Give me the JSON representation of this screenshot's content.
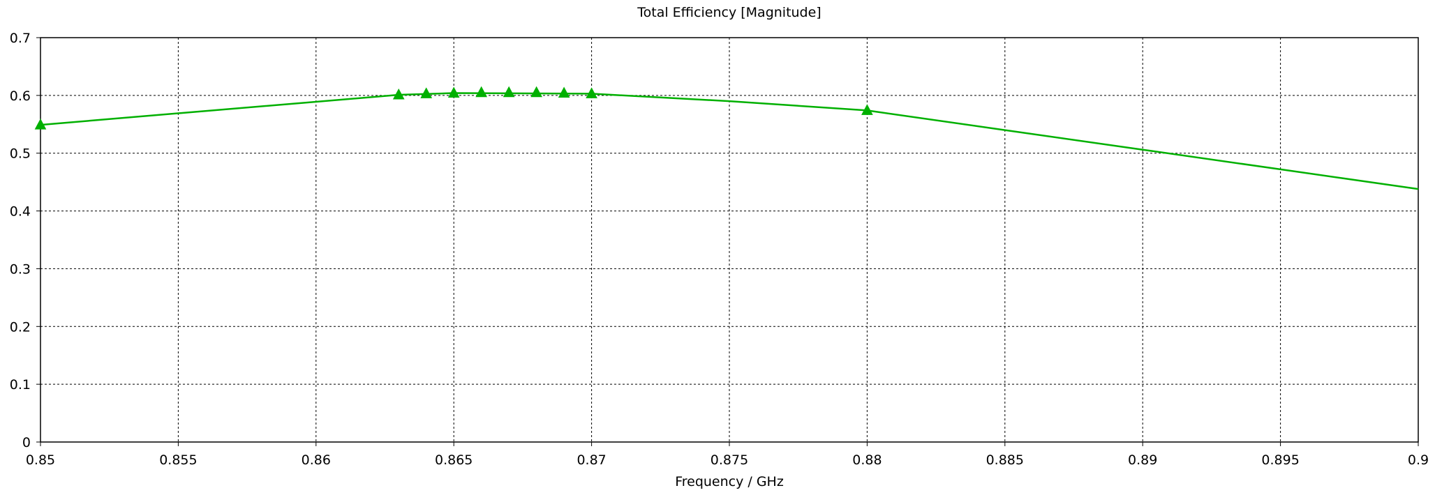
{
  "chart_data": {
    "type": "line",
    "title": "Total Efficiency [Magnitude]",
    "xlabel": "Frequency / GHz",
    "ylabel": "",
    "xlim": [
      0.85,
      0.9
    ],
    "ylim": [
      0,
      0.7
    ],
    "x_ticks": [
      0.85,
      0.855,
      0.86,
      0.865,
      0.87,
      0.875,
      0.88,
      0.885,
      0.89,
      0.895,
      0.9
    ],
    "x_tick_labels": [
      "0.85",
      "0.855",
      "0.86",
      "0.865",
      "0.87",
      "0.875",
      "0.88",
      "0.885",
      "0.89",
      "0.895",
      "0.9"
    ],
    "y_ticks": [
      0,
      0.1,
      0.2,
      0.3,
      0.4,
      0.5,
      0.6,
      0.7
    ],
    "y_tick_labels": [
      "0",
      "0.1",
      "0.2",
      "0.3",
      "0.4",
      "0.5",
      "0.6",
      "0.7"
    ],
    "grid": true,
    "grid_style": "dashed",
    "series": [
      {
        "color": "#00b000",
        "marker": "triangle",
        "x": [
          0.85,
          0.855,
          0.86,
          0.863,
          0.865,
          0.87,
          0.875,
          0.88,
          0.885,
          0.89,
          0.895,
          0.9
        ],
        "y": [
          0.549,
          0.569,
          0.589,
          0.601,
          0.604,
          0.603,
          0.59,
          0.574,
          0.54,
          0.506,
          0.472,
          0.438
        ]
      }
    ],
    "markers": {
      "x": [
        0.85,
        0.863,
        0.864,
        0.865,
        0.866,
        0.867,
        0.868,
        0.869,
        0.87,
        0.88
      ],
      "y": [
        0.549,
        0.601,
        0.603,
        0.604,
        0.605,
        0.605,
        0.605,
        0.604,
        0.603,
        0.574
      ]
    }
  }
}
